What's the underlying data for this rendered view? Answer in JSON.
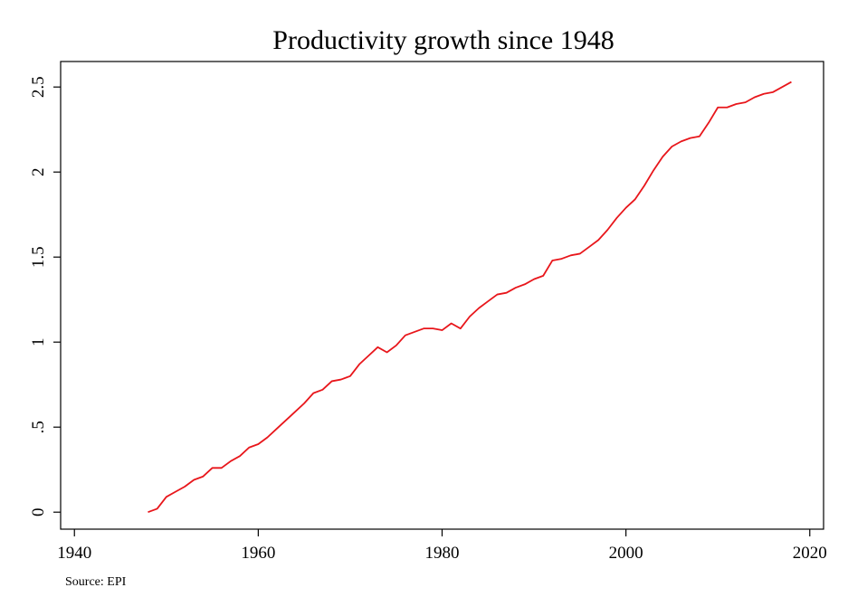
{
  "chart_data": {
    "type": "line",
    "title": "Productivity growth since 1948",
    "xlabel": "",
    "ylabel": "",
    "note": "Source: EPI",
    "xlim": [
      1938.5,
      2021.5
    ],
    "ylim": [
      -0.1,
      2.65
    ],
    "x_ticks": [
      1940,
      1960,
      1980,
      2000,
      2020
    ],
    "x_tick_labels": [
      "1940",
      "1960",
      "1980",
      "2000",
      "2020"
    ],
    "y_ticks": [
      0,
      0.5,
      1,
      1.5,
      2,
      2.5
    ],
    "y_tick_labels": [
      "0",
      ".5",
      "1",
      "1.5",
      "2",
      "2.5"
    ],
    "grid": false,
    "legend": "none",
    "series": [
      {
        "color": "#e8161b",
        "x": [
          1948,
          1949,
          1950,
          1951,
          1952,
          1953,
          1954,
          1955,
          1956,
          1957,
          1958,
          1959,
          1960,
          1961,
          1962,
          1963,
          1964,
          1965,
          1966,
          1967,
          1968,
          1969,
          1970,
          1971,
          1972,
          1973,
          1974,
          1975,
          1976,
          1977,
          1978,
          1979,
          1980,
          1981,
          1982,
          1983,
          1984,
          1985,
          1986,
          1987,
          1988,
          1989,
          1990,
          1991,
          1992,
          1993,
          1994,
          1995,
          1996,
          1997,
          1998,
          1999,
          2000,
          2001,
          2002,
          2003,
          2004,
          2005,
          2006,
          2007,
          2008,
          2009,
          2010,
          2011,
          2012,
          2013,
          2014,
          2015,
          2016,
          2017,
          2018
        ],
        "y": [
          0.0,
          0.02,
          0.09,
          0.12,
          0.15,
          0.19,
          0.21,
          0.26,
          0.26,
          0.3,
          0.33,
          0.38,
          0.4,
          0.44,
          0.49,
          0.54,
          0.59,
          0.64,
          0.7,
          0.72,
          0.77,
          0.78,
          0.8,
          0.87,
          0.92,
          0.97,
          0.94,
          0.98,
          1.04,
          1.06,
          1.08,
          1.08,
          1.07,
          1.11,
          1.08,
          1.15,
          1.2,
          1.24,
          1.28,
          1.29,
          1.32,
          1.34,
          1.37,
          1.39,
          1.48,
          1.49,
          1.51,
          1.52,
          1.56,
          1.6,
          1.66,
          1.73,
          1.79,
          1.84,
          1.92,
          2.01,
          2.09,
          2.15,
          2.18,
          2.2,
          2.21,
          2.29,
          2.38,
          2.38,
          2.4,
          2.41,
          2.44,
          2.46,
          2.47,
          2.5,
          2.53
        ]
      }
    ]
  }
}
